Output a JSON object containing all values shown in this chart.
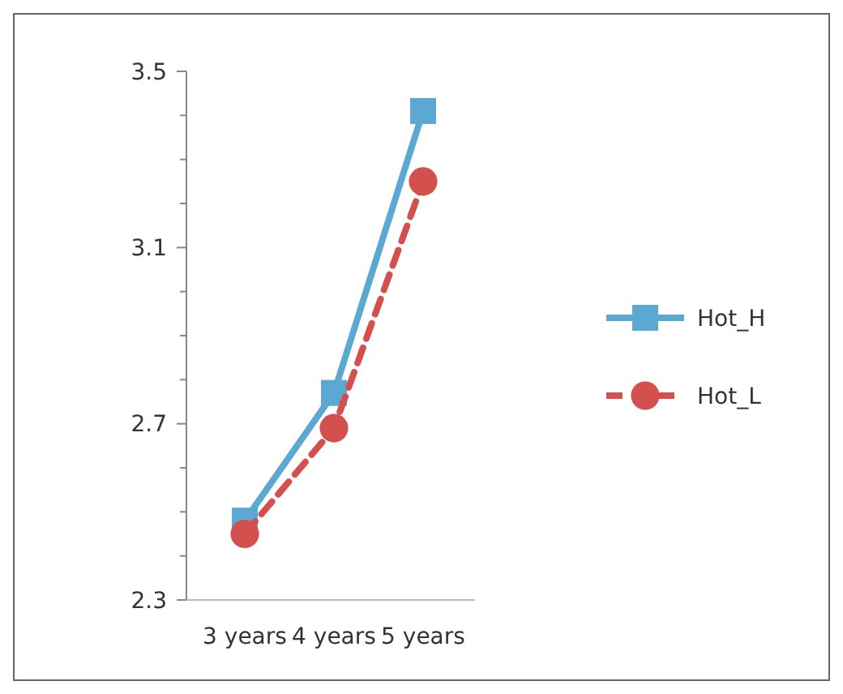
{
  "chart_data": {
    "type": "line",
    "categories": [
      "3 years",
      "4 years",
      "5 years"
    ],
    "series": [
      {
        "name": "Hot_H",
        "color": "#5ba8d2",
        "values": [
          2.48,
          2.77,
          3.41
        ],
        "marker": "square",
        "line_style": "solid"
      },
      {
        "name": "Hot_L",
        "color": "#d4504e",
        "values": [
          2.45,
          2.69,
          3.25
        ],
        "marker": "circle",
        "line_style": "dashed"
      }
    ],
    "ylim": [
      2.3,
      3.5
    ],
    "yticks": [
      2.3,
      {
        "value": 2.4,
        "label": null
      },
      {
        "value": 2.5,
        "label": null
      },
      {
        "value": 2.6,
        "label": null
      },
      2.7,
      {
        "value": 2.8,
        "label": null
      },
      {
        "value": 2.9,
        "label": null
      },
      {
        "value": 3.0,
        "label": null
      },
      3.1,
      {
        "value": 3.2,
        "label": null
      },
      {
        "value": 3.3,
        "label": null
      },
      {
        "value": 3.4,
        "label": null
      },
      3.5
    ],
    "grid": false,
    "legend": "right"
  }
}
